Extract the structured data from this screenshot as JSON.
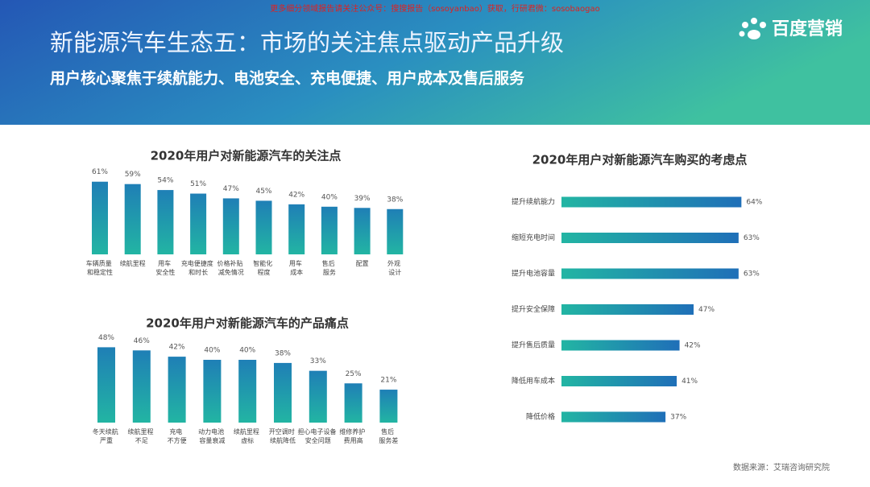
{
  "header": {
    "watermark": "更多细分领域报告请关注公众号：搜搜报告（sosoyanbao）获取，行研君微：sosobaogao",
    "title": "新能源汽车生态五：市场的关注焦点驱动产品升级",
    "subtitle": "用户核心聚焦于续航能力、电池安全、充电便捷、用户成本及售后服务",
    "logo": "百度营销"
  },
  "source": "数据来源：艾瑞咨询研究院",
  "chart_data": [
    {
      "type": "bar",
      "orientation": "vertical",
      "title": "2020年用户对新能源汽车的关注点",
      "categories": [
        "车辆质量\n和稳定性",
        "续航里程",
        "用车\n安全性",
        "充电便捷度\n和时长",
        "价格补贴\n减免情况",
        "智能化\n程度",
        "用车\n成本",
        "售后\n服务",
        "配置",
        "外观\n设计"
      ],
      "values": [
        61,
        59,
        54,
        51,
        47,
        45,
        42,
        40,
        39,
        38
      ],
      "value_labels": [
        "61%",
        "59%",
        "54%",
        "51%",
        "47%",
        "45%",
        "42%",
        "40%",
        "39%",
        "38%"
      ],
      "colors": [
        "#1f7fb6",
        "#22b5a3"
      ]
    },
    {
      "type": "bar",
      "orientation": "vertical",
      "title": "2020年用户对新能源汽车的产品痛点",
      "categories": [
        "冬天续航\n严重",
        "续航里程\n不足",
        "充电\n不方便",
        "动力电池\n容量衰减",
        "续航里程\n虚标",
        "开空调时\n续航降低",
        "担心电子设备\n安全问题",
        "维修养护\n费用高",
        "售后\n服务差"
      ],
      "values": [
        48,
        46,
        42,
        40,
        40,
        38,
        33,
        25,
        21
      ],
      "value_labels": [
        "48%",
        "46%",
        "42%",
        "40%",
        "40%",
        "38%",
        "33%",
        "25%",
        "21%"
      ],
      "colors": [
        "#1f7fb6",
        "#22b5a3"
      ]
    },
    {
      "type": "bar",
      "orientation": "horizontal",
      "title": "2020年用户对新能源汽车购买的考虑点",
      "categories": [
        "提升续航能力",
        "缩短充电时间",
        "提升电池容量",
        "提升安全保障",
        "提升售后质量",
        "降低用车成本",
        "降低价格"
      ],
      "values": [
        64,
        63,
        63,
        47,
        42,
        41,
        37
      ],
      "value_labels": [
        "64%",
        "63%",
        "63%",
        "47%",
        "42%",
        "41%",
        "37%"
      ],
      "colors": [
        "#22b5a3",
        "#1f6fb8"
      ]
    }
  ]
}
